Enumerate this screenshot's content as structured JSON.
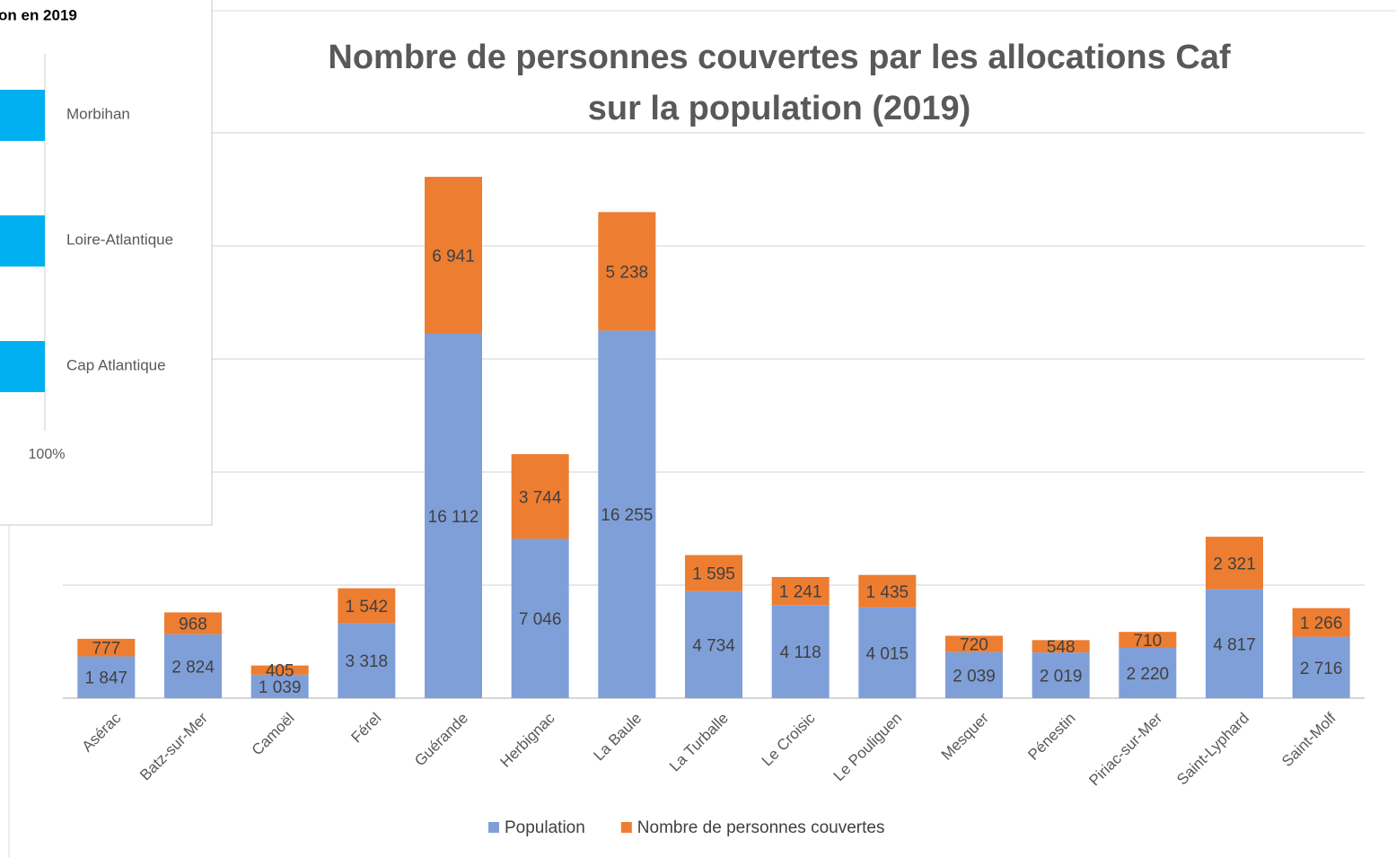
{
  "chart_data": [
    {
      "type": "stacked_bar",
      "title": [
        "Nombre de personnes couvertes par les allocations Caf",
        "sur la population (2019)"
      ],
      "categories": [
        "Asérac",
        "Batz-sur-Mer",
        "Camoël",
        "Férel",
        "Guérande",
        "Herbignac",
        "La Baule",
        "La Turballe",
        "Le Croisic",
        "Le Pouliguen",
        "Mesquer",
        "Pénestin",
        "Piriac-sur-Mer",
        "Saint-Lyphard",
        "Saint-Molf"
      ],
      "series": [
        {
          "name": "Population",
          "color": "#7f9fd9",
          "values": [
            1847,
            2824,
            1039,
            3318,
            16112,
            7046,
            16255,
            4734,
            4118,
            4015,
            2039,
            2019,
            2220,
            4817,
            2716
          ],
          "value_labels": [
            "1 847",
            "2 824",
            "1 039",
            "3 318",
            "16 112",
            "7 046",
            "16 255",
            "4 734",
            "4 118",
            "4 015",
            "2 039",
            "2 019",
            "2 220",
            "4 817",
            "2 716"
          ]
        },
        {
          "name": "Nombre de personnes couvertes",
          "color": "#ed7d31",
          "values": [
            777,
            968,
            405,
            1542,
            6941,
            3744,
            5238,
            1595,
            1241,
            1435,
            720,
            548,
            710,
            2321,
            1266
          ],
          "value_labels": [
            "777",
            "968",
            "405",
            "1 542",
            "6 941",
            "3 744",
            "5 238",
            "1 595",
            "1 241",
            "1 435",
            "720",
            "548",
            "710",
            "2 321",
            "1 266"
          ]
        }
      ],
      "ylim": [
        0,
        25000
      ],
      "yticks": [
        0,
        5000,
        10000,
        15000,
        20000,
        25000
      ],
      "grid": true,
      "ytick_labels": false,
      "legend": "bottom"
    },
    {
      "type": "horizontal_bar",
      "title": "on en 2019",
      "categories": [
        "Morbihan",
        "Loire-Atlantique",
        "Cap Atlantique"
      ],
      "color": "#00b0f0",
      "xticks": [
        {
          "value": 100,
          "label": "100%"
        }
      ]
    }
  ]
}
